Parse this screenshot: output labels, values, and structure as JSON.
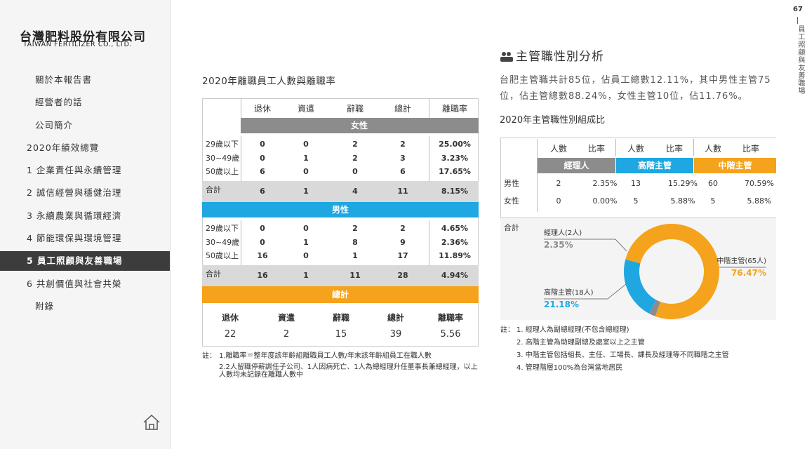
{
  "page_number": "67",
  "side_title": "員工照顧與友善職場",
  "logo": {
    "chinese": "台灣肥料股份有限公司",
    "english": "TAIWAN FERTILIZER CO., LTD."
  },
  "nav": {
    "items": [
      "關於本報告書",
      "經營者的話",
      "公司簡介",
      "2020年績效總覽",
      "1 企業責任與永續管理",
      "2 誠信經營與穩健治理",
      "3 永續農業與循環經濟",
      "4 節能環保與環境管理",
      "5 員工照顧與友善職場",
      "6 共創價值與社會共榮",
      "附錄"
    ],
    "active": 8
  },
  "turnover_table": {
    "title": "2020年離職員工人數與離職率",
    "columns": [
      "退休",
      "資遣",
      "辭職",
      "總計",
      "離職率"
    ],
    "sections": [
      {
        "name": "女性",
        "color": "#8c8c8c",
        "rows": [
          [
            "29歲以下",
            0,
            0,
            2,
            2,
            "25.00%"
          ],
          [
            "30~49歲",
            0,
            1,
            2,
            3,
            "3.23%"
          ],
          [
            "50歲以上",
            6,
            0,
            0,
            6,
            "17.65%"
          ]
        ],
        "total": [
          "合計",
          6,
          1,
          4,
          11,
          "8.15%"
        ]
      },
      {
        "name": "男性",
        "color": "#1ea7e1",
        "rows": [
          [
            "29歲以下",
            0,
            0,
            2,
            2,
            "4.65%"
          ],
          [
            "30~49歲",
            0,
            1,
            8,
            9,
            "2.36%"
          ],
          [
            "50歲以上",
            16,
            0,
            1,
            17,
            "11.89%"
          ]
        ],
        "total": [
          "合計",
          16,
          1,
          11,
          28,
          "4.94%"
        ]
      }
    ],
    "overall": {
      "name": "總計",
      "color": "#f5a21c",
      "columns": [
        "退休",
        "資遣",
        "辭職",
        "總計",
        "離職率"
      ],
      "values": [
        22,
        2,
        15,
        39,
        5.56
      ]
    },
    "notes_prefix": "註：",
    "notes": [
      "1.離職率＝整年度該年齡組離職員工人數/年末該年齡組員工在職人數",
      "2.2人留職停薪調任子公司、1人因病死亡、1人為總經理升任董事長兼總經理，以上人數均未記錄在離職人數中"
    ]
  },
  "manager": {
    "heading": "主管職性別分析",
    "text": "台肥主管職共計85位，佔員工總數12.11%，其中男性主管75位，佔主管總數88.24%，女性主管10位，佔11.76%。",
    "subtitle": "2020年主管職性別組成比",
    "table": {
      "subheaders": [
        "人數",
        "比率",
        "人數",
        "比率",
        "人數",
        "比率"
      ],
      "groups": [
        {
          "name": "經理人",
          "color": "#8c8c8c"
        },
        {
          "name": "高階主管",
          "color": "#1ea7e1"
        },
        {
          "name": "中階主管",
          "color": "#f5a21c"
        }
      ],
      "rows": [
        {
          "label": "男性",
          "cells": [
            2,
            "2.35%",
            13,
            "15.29%",
            60,
            "70.59%"
          ]
        },
        {
          "label": "女性",
          "cells": [
            0,
            "0.00%",
            5,
            "5.88%",
            5,
            "5.88%"
          ]
        }
      ]
    },
    "notes_prefix": "註：",
    "notes": [
      "1. 經理人為副總經理(不包含總經理)",
      "2. 高階主管為助理副總及處室以上之主管",
      "3. 中階主管包括組長、主任、工場長、課長及經理等不同職階之主管",
      "4. 管理階層100%為台灣當地居民"
    ]
  },
  "chart_data": {
    "type": "pie",
    "title": "合計",
    "categories": [
      "經理人(2人)",
      "高階主管(18人)",
      "中階主管(65人)"
    ],
    "values": [
      2.35,
      21.18,
      76.47
    ],
    "value_labels": [
      "2.35%",
      "21.18%",
      "76.47%"
    ],
    "colors": [
      "#8c8c8c",
      "#1ea7e1",
      "#f5a21c"
    ]
  }
}
